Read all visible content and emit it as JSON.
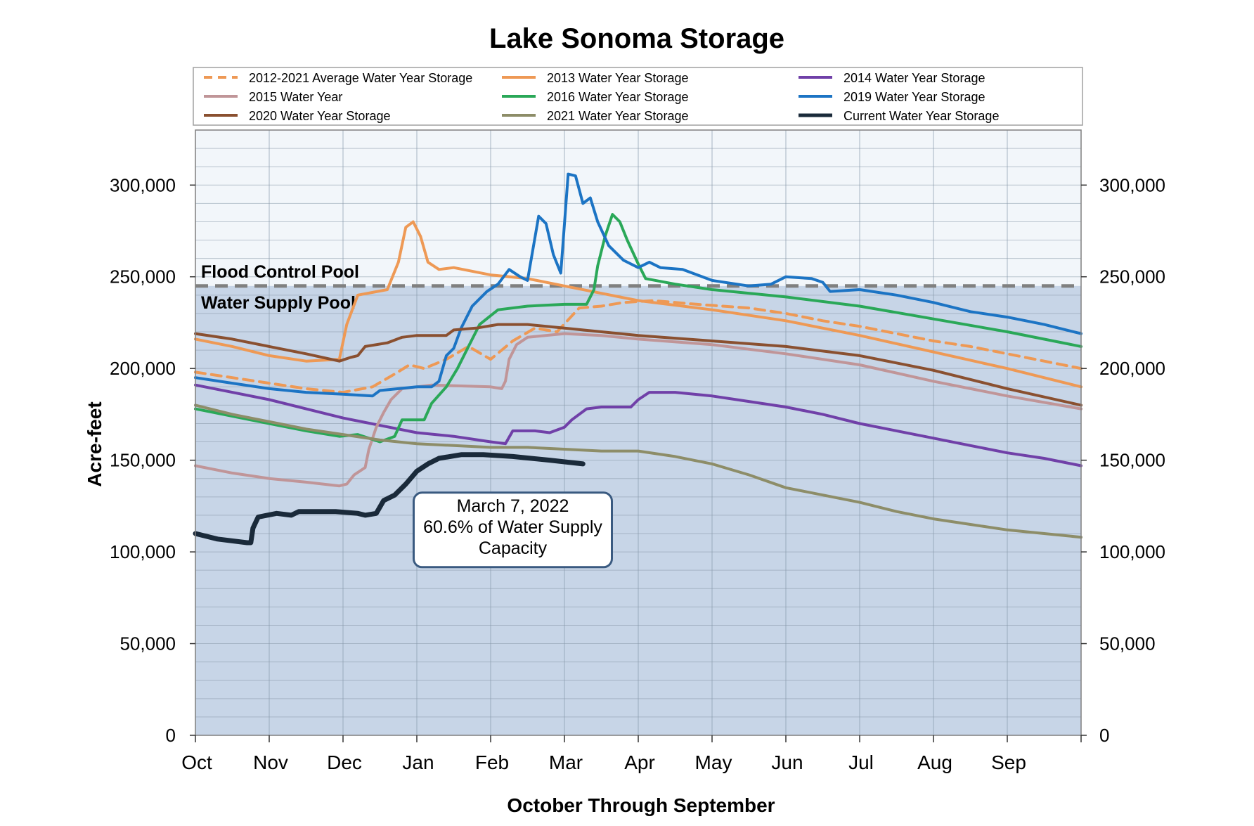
{
  "chart_data": {
    "type": "line",
    "title": "Lake Sonoma Storage",
    "xlabel": "October Through September",
    "ylabel": "Acre-feet",
    "x_ticks": [
      "Oct",
      "Nov",
      "Dec",
      "Jan",
      "Feb",
      "Mar",
      "Apr",
      "May",
      "Jun",
      "Jul",
      "Aug",
      "Sep"
    ],
    "y_ticks": [
      "0",
      "50,000",
      "100,000",
      "150,000",
      "200,000",
      "250,000",
      "300,000"
    ],
    "y_tick_values": [
      0,
      50000,
      100000,
      150000,
      200000,
      250000,
      300000
    ],
    "xlim": [
      0,
      12
    ],
    "ylim": [
      0,
      330000
    ],
    "grid": true,
    "minor_grid_step": 10000,
    "legend_position": "top",
    "regions": {
      "flood_control_pool": {
        "label": "Flood Control Pool",
        "from": 245000,
        "to": 330000,
        "color": "#f2f6fa"
      },
      "water_supply_pool": {
        "label": "Water Supply Pool",
        "from": 0,
        "to": 245000,
        "color": "#c7d5e7"
      },
      "boundary": 245000
    },
    "annotation": {
      "lines": [
        "March 7, 2022",
        "60.6% of Water Supply",
        "Capacity"
      ],
      "x": 4.3,
      "y": 112000
    },
    "series": [
      {
        "name": "2012-2021 Average Water Year Storage",
        "color": "#ee9955",
        "dashed": true,
        "points": [
          [
            0,
            198000
          ],
          [
            0.5,
            195000
          ],
          [
            1,
            192000
          ],
          [
            1.5,
            189000
          ],
          [
            2,
            187000
          ],
          [
            2.4,
            190000
          ],
          [
            2.7,
            197000
          ],
          [
            2.9,
            202000
          ],
          [
            3.1,
            200000
          ],
          [
            3.4,
            205000
          ],
          [
            3.7,
            212000
          ],
          [
            4,
            205000
          ],
          [
            4.3,
            215000
          ],
          [
            4.6,
            222000
          ],
          [
            4.9,
            220000
          ],
          [
            5.2,
            233000
          ],
          [
            5.5,
            234000
          ],
          [
            5.8,
            236000
          ],
          [
            6.2,
            237000
          ],
          [
            6.8,
            235000
          ],
          [
            7.5,
            233000
          ],
          [
            8,
            230000
          ],
          [
            8.5,
            226000
          ],
          [
            9,
            223000
          ],
          [
            9.5,
            219000
          ],
          [
            10,
            215000
          ],
          [
            10.5,
            212000
          ],
          [
            11,
            208000
          ],
          [
            11.5,
            204000
          ],
          [
            12,
            200000
          ]
        ]
      },
      {
        "name": "2013 Water Year Storage",
        "color": "#ee9955",
        "dashed": false,
        "points": [
          [
            0,
            216000
          ],
          [
            0.5,
            212000
          ],
          [
            1,
            207000
          ],
          [
            1.5,
            204000
          ],
          [
            1.95,
            205000
          ],
          [
            2.05,
            224000
          ],
          [
            2.2,
            240000
          ],
          [
            2.6,
            243000
          ],
          [
            2.75,
            258000
          ],
          [
            2.85,
            277000
          ],
          [
            2.95,
            280000
          ],
          [
            3.05,
            272000
          ],
          [
            3.15,
            258000
          ],
          [
            3.3,
            254000
          ],
          [
            3.5,
            255000
          ],
          [
            4,
            251000
          ],
          [
            4.5,
            249000
          ],
          [
            5,
            245000
          ],
          [
            5.5,
            241000
          ],
          [
            6,
            237000
          ],
          [
            7,
            232000
          ],
          [
            8,
            226000
          ],
          [
            9,
            218000
          ],
          [
            10,
            209000
          ],
          [
            11,
            200000
          ],
          [
            12,
            190000
          ]
        ]
      },
      {
        "name": "2014 Water Year Storage",
        "color": "#7040a8",
        "dashed": false,
        "points": [
          [
            0,
            191000
          ],
          [
            0.5,
            187000
          ],
          [
            1,
            183000
          ],
          [
            1.5,
            178000
          ],
          [
            2,
            173000
          ],
          [
            2.5,
            169000
          ],
          [
            3,
            165000
          ],
          [
            3.5,
            163000
          ],
          [
            4,
            160000
          ],
          [
            4.2,
            159000
          ],
          [
            4.3,
            166000
          ],
          [
            4.6,
            166000
          ],
          [
            4.8,
            165000
          ],
          [
            5,
            168000
          ],
          [
            5.1,
            172000
          ],
          [
            5.3,
            178000
          ],
          [
            5.5,
            179000
          ],
          [
            5.9,
            179000
          ],
          [
            6,
            183000
          ],
          [
            6.15,
            187000
          ],
          [
            6.5,
            187000
          ],
          [
            7,
            185000
          ],
          [
            7.5,
            182000
          ],
          [
            8,
            179000
          ],
          [
            8.5,
            175000
          ],
          [
            9,
            170000
          ],
          [
            9.5,
            166000
          ],
          [
            10,
            162000
          ],
          [
            10.5,
            158000
          ],
          [
            11,
            154000
          ],
          [
            11.5,
            151000
          ],
          [
            12,
            147000
          ]
        ]
      },
      {
        "name": "2015 Water Year",
        "color": "#c09598",
        "dashed": false,
        "points": [
          [
            0,
            147000
          ],
          [
            0.5,
            143000
          ],
          [
            1,
            140000
          ],
          [
            1.5,
            138000
          ],
          [
            1.95,
            136000
          ],
          [
            2.05,
            137000
          ],
          [
            2.15,
            142000
          ],
          [
            2.3,
            146000
          ],
          [
            2.35,
            156000
          ],
          [
            2.45,
            168000
          ],
          [
            2.55,
            176000
          ],
          [
            2.65,
            183000
          ],
          [
            2.8,
            189000
          ],
          [
            3.2,
            191000
          ],
          [
            4,
            190000
          ],
          [
            4.15,
            189000
          ],
          [
            4.2,
            193000
          ],
          [
            4.25,
            205000
          ],
          [
            4.35,
            213000
          ],
          [
            4.5,
            217000
          ],
          [
            5,
            219000
          ],
          [
            5.5,
            218000
          ],
          [
            6,
            216000
          ],
          [
            7,
            213000
          ],
          [
            8,
            208000
          ],
          [
            9,
            202000
          ],
          [
            10,
            193000
          ],
          [
            11,
            185000
          ],
          [
            12,
            178000
          ]
        ]
      },
      {
        "name": "2016 Water Year Storage",
        "color": "#2aa858",
        "dashed": false,
        "points": [
          [
            0,
            178000
          ],
          [
            0.5,
            174000
          ],
          [
            1,
            170000
          ],
          [
            1.5,
            166000
          ],
          [
            1.95,
            163000
          ],
          [
            2.2,
            164000
          ],
          [
            2.5,
            160000
          ],
          [
            2.7,
            163000
          ],
          [
            2.8,
            172000
          ],
          [
            3.1,
            172000
          ],
          [
            3.2,
            181000
          ],
          [
            3.4,
            190000
          ],
          [
            3.55,
            200000
          ],
          [
            3.7,
            212000
          ],
          [
            3.85,
            224000
          ],
          [
            4.1,
            232000
          ],
          [
            4.5,
            234000
          ],
          [
            5,
            235000
          ],
          [
            5.3,
            235000
          ],
          [
            5.4,
            243000
          ],
          [
            5.45,
            256000
          ],
          [
            5.55,
            272000
          ],
          [
            5.65,
            284000
          ],
          [
            5.75,
            280000
          ],
          [
            5.85,
            270000
          ],
          [
            6,
            257000
          ],
          [
            6.1,
            249000
          ],
          [
            6.5,
            246000
          ],
          [
            7,
            243000
          ],
          [
            8,
            239000
          ],
          [
            9,
            234000
          ],
          [
            10,
            227000
          ],
          [
            11,
            220000
          ],
          [
            12,
            212000
          ]
        ]
      },
      {
        "name": "2019 Water Year Storage",
        "color": "#1c74c4",
        "dashed": false,
        "points": [
          [
            0,
            195000
          ],
          [
            0.5,
            192000
          ],
          [
            1,
            189000
          ],
          [
            1.5,
            187000
          ],
          [
            2,
            186000
          ],
          [
            2.4,
            185000
          ],
          [
            2.5,
            188000
          ],
          [
            3,
            190000
          ],
          [
            3.2,
            190000
          ],
          [
            3.3,
            193000
          ],
          [
            3.4,
            207000
          ],
          [
            3.5,
            211000
          ],
          [
            3.6,
            222000
          ],
          [
            3.75,
            234000
          ],
          [
            3.95,
            242000
          ],
          [
            4.1,
            246000
          ],
          [
            4.25,
            254000
          ],
          [
            4.4,
            250000
          ],
          [
            4.5,
            248000
          ],
          [
            4.65,
            283000
          ],
          [
            4.75,
            279000
          ],
          [
            4.85,
            262000
          ],
          [
            4.95,
            252000
          ],
          [
            5.05,
            306000
          ],
          [
            5.15,
            305000
          ],
          [
            5.25,
            290000
          ],
          [
            5.35,
            293000
          ],
          [
            5.45,
            280000
          ],
          [
            5.6,
            267000
          ],
          [
            5.8,
            259000
          ],
          [
            6,
            255000
          ],
          [
            6.15,
            258000
          ],
          [
            6.3,
            255000
          ],
          [
            6.6,
            254000
          ],
          [
            7,
            248000
          ],
          [
            7.5,
            245000
          ],
          [
            7.8,
            246000
          ],
          [
            8,
            250000
          ],
          [
            8.35,
            249000
          ],
          [
            8.5,
            247000
          ],
          [
            8.6,
            242000
          ],
          [
            9,
            243000
          ],
          [
            9.5,
            240000
          ],
          [
            10,
            236000
          ],
          [
            10.5,
            231000
          ],
          [
            11,
            228000
          ],
          [
            11.5,
            224000
          ],
          [
            12,
            219000
          ]
        ]
      },
      {
        "name": "2020 Water Year Storage",
        "color": "#8a5030",
        "dashed": false,
        "points": [
          [
            0,
            219000
          ],
          [
            0.5,
            216000
          ],
          [
            1,
            212000
          ],
          [
            1.5,
            208000
          ],
          [
            1.95,
            204000
          ],
          [
            2.1,
            206000
          ],
          [
            2.2,
            207000
          ],
          [
            2.3,
            212000
          ],
          [
            2.6,
            214000
          ],
          [
            2.8,
            217000
          ],
          [
            3,
            218000
          ],
          [
            3.4,
            218000
          ],
          [
            3.5,
            221000
          ],
          [
            3.8,
            222000
          ],
          [
            4.1,
            224000
          ],
          [
            4.5,
            224000
          ],
          [
            5,
            222000
          ],
          [
            5.5,
            220000
          ],
          [
            6,
            218000
          ],
          [
            7,
            215000
          ],
          [
            8,
            212000
          ],
          [
            9,
            207000
          ],
          [
            10,
            199000
          ],
          [
            11,
            189000
          ],
          [
            12,
            180000
          ]
        ]
      },
      {
        "name": "2021 Water Year Storage",
        "color": "#8d8d68",
        "dashed": false,
        "points": [
          [
            0,
            180000
          ],
          [
            0.5,
            175000
          ],
          [
            1,
            171000
          ],
          [
            1.5,
            167000
          ],
          [
            2,
            164000
          ],
          [
            2.5,
            161000
          ],
          [
            3,
            159000
          ],
          [
            3.5,
            158000
          ],
          [
            4,
            157000
          ],
          [
            4.5,
            157000
          ],
          [
            5,
            156000
          ],
          [
            5.5,
            155000
          ],
          [
            6,
            155000
          ],
          [
            6.5,
            152000
          ],
          [
            7,
            148000
          ],
          [
            7.5,
            142000
          ],
          [
            8,
            135000
          ],
          [
            8.5,
            131000
          ],
          [
            9,
            127000
          ],
          [
            9.5,
            122000
          ],
          [
            10,
            118000
          ],
          [
            10.5,
            115000
          ],
          [
            11,
            112000
          ],
          [
            11.5,
            110000
          ],
          [
            12,
            108000
          ]
        ]
      },
      {
        "name": "Current Water Year Storage",
        "color": "#1a2a3a",
        "dashed": false,
        "current": true,
        "points": [
          [
            0,
            110000
          ],
          [
            0.3,
            107000
          ],
          [
            0.7,
            105000
          ],
          [
            0.75,
            105000
          ],
          [
            0.78,
            113000
          ],
          [
            0.85,
            119000
          ],
          [
            1.1,
            121000
          ],
          [
            1.3,
            120000
          ],
          [
            1.4,
            122000
          ],
          [
            1.6,
            122000
          ],
          [
            1.9,
            122000
          ],
          [
            2.2,
            121000
          ],
          [
            2.3,
            120000
          ],
          [
            2.45,
            121000
          ],
          [
            2.55,
            128000
          ],
          [
            2.7,
            131000
          ],
          [
            2.85,
            137000
          ],
          [
            3,
            144000
          ],
          [
            3.15,
            148000
          ],
          [
            3.3,
            151000
          ],
          [
            3.6,
            153000
          ],
          [
            3.9,
            153000
          ],
          [
            4.3,
            152000
          ],
          [
            4.8,
            150000
          ],
          [
            5.25,
            148000
          ]
        ]
      }
    ]
  }
}
